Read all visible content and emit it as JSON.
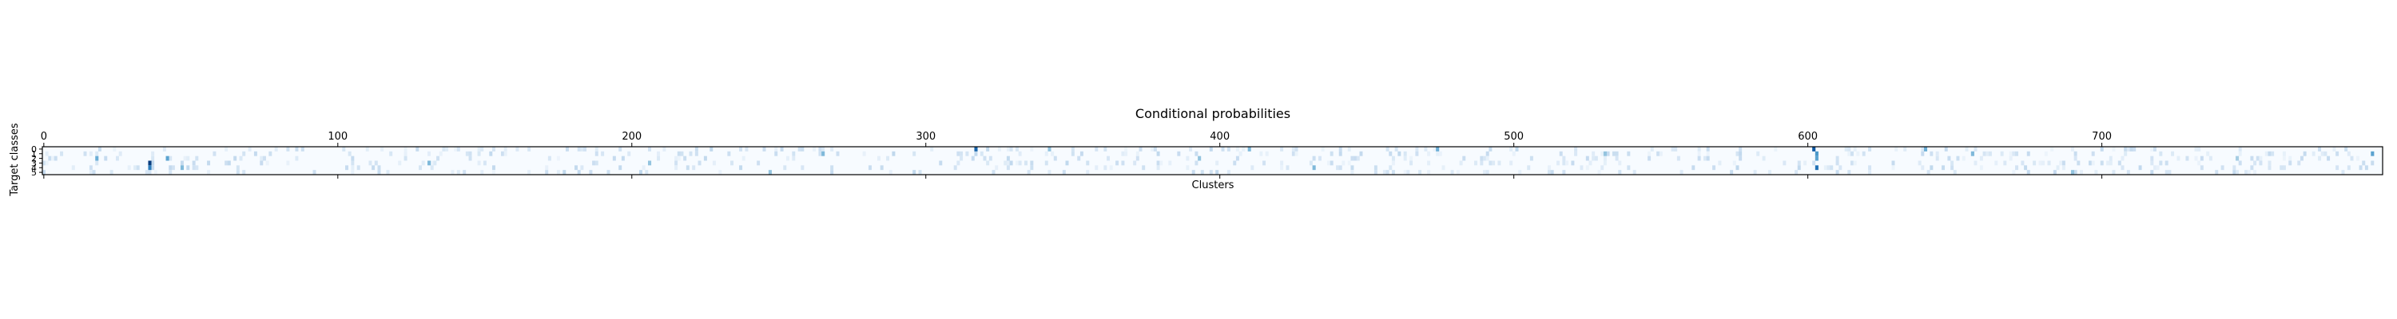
{
  "chart_data": {
    "type": "heatmap",
    "title": "Conditional probabilities",
    "xlabel": "Clusters",
    "ylabel": "Target classes",
    "x_ticks": [
      0,
      100,
      200,
      300,
      400,
      500,
      600,
      700
    ],
    "x_tick_position": "top-and-bottom",
    "xlim": [
      0,
      795
    ],
    "y_ticks": [
      0,
      1,
      2,
      3,
      4,
      5
    ],
    "ylim": [
      0,
      5
    ],
    "n_clusters": 796,
    "n_classes": 6,
    "colormap": "Blues",
    "grid": false,
    "colors": {
      "low": "#f7fbff",
      "high": "#08306b",
      "axis": "#000000"
    },
    "highlights": [
      {
        "cluster": 36,
        "class": 3,
        "value": 0.95
      },
      {
        "cluster": 36,
        "class": 4,
        "value": 0.7
      },
      {
        "cluster": 317,
        "class": 0,
        "value": 0.8
      },
      {
        "cluster": 602,
        "class": 0,
        "value": 0.85
      },
      {
        "cluster": 603,
        "class": 1,
        "value": 0.6
      },
      {
        "cluster": 603,
        "class": 2,
        "value": 0.55
      },
      {
        "cluster": 603,
        "class": 4,
        "value": 0.75
      },
      {
        "cluster": 42,
        "class": 2,
        "value": 0.55
      },
      {
        "cluster": 47,
        "class": 4,
        "value": 0.45
      },
      {
        "cluster": 18,
        "class": 2,
        "value": 0.5
      },
      {
        "cluster": 131,
        "class": 3,
        "value": 0.45
      },
      {
        "cluster": 206,
        "class": 3,
        "value": 0.4
      },
      {
        "cluster": 247,
        "class": 5,
        "value": 0.4
      },
      {
        "cluster": 265,
        "class": 1,
        "value": 0.45
      },
      {
        "cluster": 342,
        "class": 0,
        "value": 0.4
      },
      {
        "cluster": 393,
        "class": 2,
        "value": 0.4
      },
      {
        "cluster": 410,
        "class": 0,
        "value": 0.45
      },
      {
        "cluster": 432,
        "class": 4,
        "value": 0.45
      },
      {
        "cluster": 474,
        "class": 0,
        "value": 0.5
      },
      {
        "cluster": 531,
        "class": 1,
        "value": 0.4
      },
      {
        "cluster": 640,
        "class": 0,
        "value": 0.5
      },
      {
        "cluster": 656,
        "class": 1,
        "value": 0.45
      },
      {
        "cluster": 690,
        "class": 5,
        "value": 0.4
      },
      {
        "cluster": 746,
        "class": 2,
        "value": 0.35
      },
      {
        "cluster": 792,
        "class": 1,
        "value": 0.55
      }
    ]
  }
}
